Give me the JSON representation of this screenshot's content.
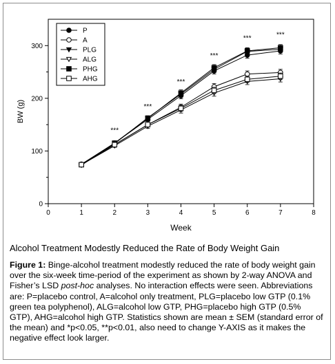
{
  "chart_data": {
    "type": "line",
    "xlabel": "Week",
    "ylabel": "BW (g)",
    "xlim": [
      0,
      8
    ],
    "ylim": [
      0,
      350
    ],
    "xticks": [
      "0",
      "1",
      "2",
      "3",
      "4",
      "5",
      "6",
      "7",
      "8"
    ],
    "yticks": [
      "0",
      "100",
      "200",
      "300"
    ],
    "x": [
      1,
      2,
      3,
      4,
      5,
      6,
      7
    ],
    "legend_position": "top-left",
    "grid": false,
    "series": [
      {
        "name": "P",
        "marker": "circle-filled",
        "values": [
          75,
          115,
          160,
          205,
          252,
          282,
          290
        ],
        "errors": [
          3,
          3,
          4,
          6,
          6,
          6,
          6
        ]
      },
      {
        "name": "A",
        "marker": "circle-open",
        "values": [
          74,
          112,
          150,
          183,
          222,
          246,
          249
        ],
        "errors": [
          3,
          3,
          4,
          6,
          6,
          6,
          6
        ]
      },
      {
        "name": "PLG",
        "marker": "triangle-down-filled",
        "values": [
          73,
          114,
          163,
          208,
          255,
          289,
          293
        ],
        "errors": [
          3,
          3,
          4,
          6,
          6,
          6,
          6
        ]
      },
      {
        "name": "ALG",
        "marker": "triangle-down-open",
        "values": [
          74,
          110,
          147,
          178,
          210,
          232,
          237
        ],
        "errors": [
          3,
          3,
          4,
          6,
          6,
          6,
          6
        ]
      },
      {
        "name": "PHG",
        "marker": "square-filled",
        "values": [
          74,
          115,
          162,
          210,
          258,
          290,
          296
        ],
        "errors": [
          3,
          3,
          4,
          6,
          6,
          6,
          6
        ]
      },
      {
        "name": "AHG",
        "marker": "square-open",
        "values": [
          74,
          112,
          150,
          181,
          215,
          236,
          242
        ],
        "errors": [
          3,
          3,
          4,
          6,
          6,
          6,
          6
        ]
      }
    ],
    "annotations": [
      {
        "x": 2,
        "y": 135,
        "text": "***"
      },
      {
        "x": 3,
        "y": 180,
        "text": "***"
      },
      {
        "x": 4,
        "y": 227,
        "text": "***"
      },
      {
        "x": 5,
        "y": 277,
        "text": "***"
      },
      {
        "x": 6,
        "y": 310,
        "text": "***"
      },
      {
        "x": 7,
        "y": 317,
        "text": "***"
      }
    ]
  },
  "subtitle": "Alcohol Treatment Modestly Reduced the Rate of Body Weight Gain",
  "caption": {
    "label": "Figure 1:",
    "text1": " Binge-alcohol treatment modestly reduced the rate of body weight gain over the six-week time-period of the experiment as shown by 2-way ANOVA and Fisher’s LSD ",
    "italic": "post-hoc",
    "text2": " analyses. No interaction effects were seen. Abbreviations are: P=placebo control, A=alcohol only treatment, PLG=placebo low GTP (0.1% green tea polyphenol), ALG=alcohol low GTP, PHG=placebo high GTP (0.5% GTP), AHG=alcohol high GTP. Statistics shown are mean ± SEM (standard error of the mean) and *p<0.05, **p<0.01, also need to change Y-AXIS as it makes the negative effect look larger."
  }
}
